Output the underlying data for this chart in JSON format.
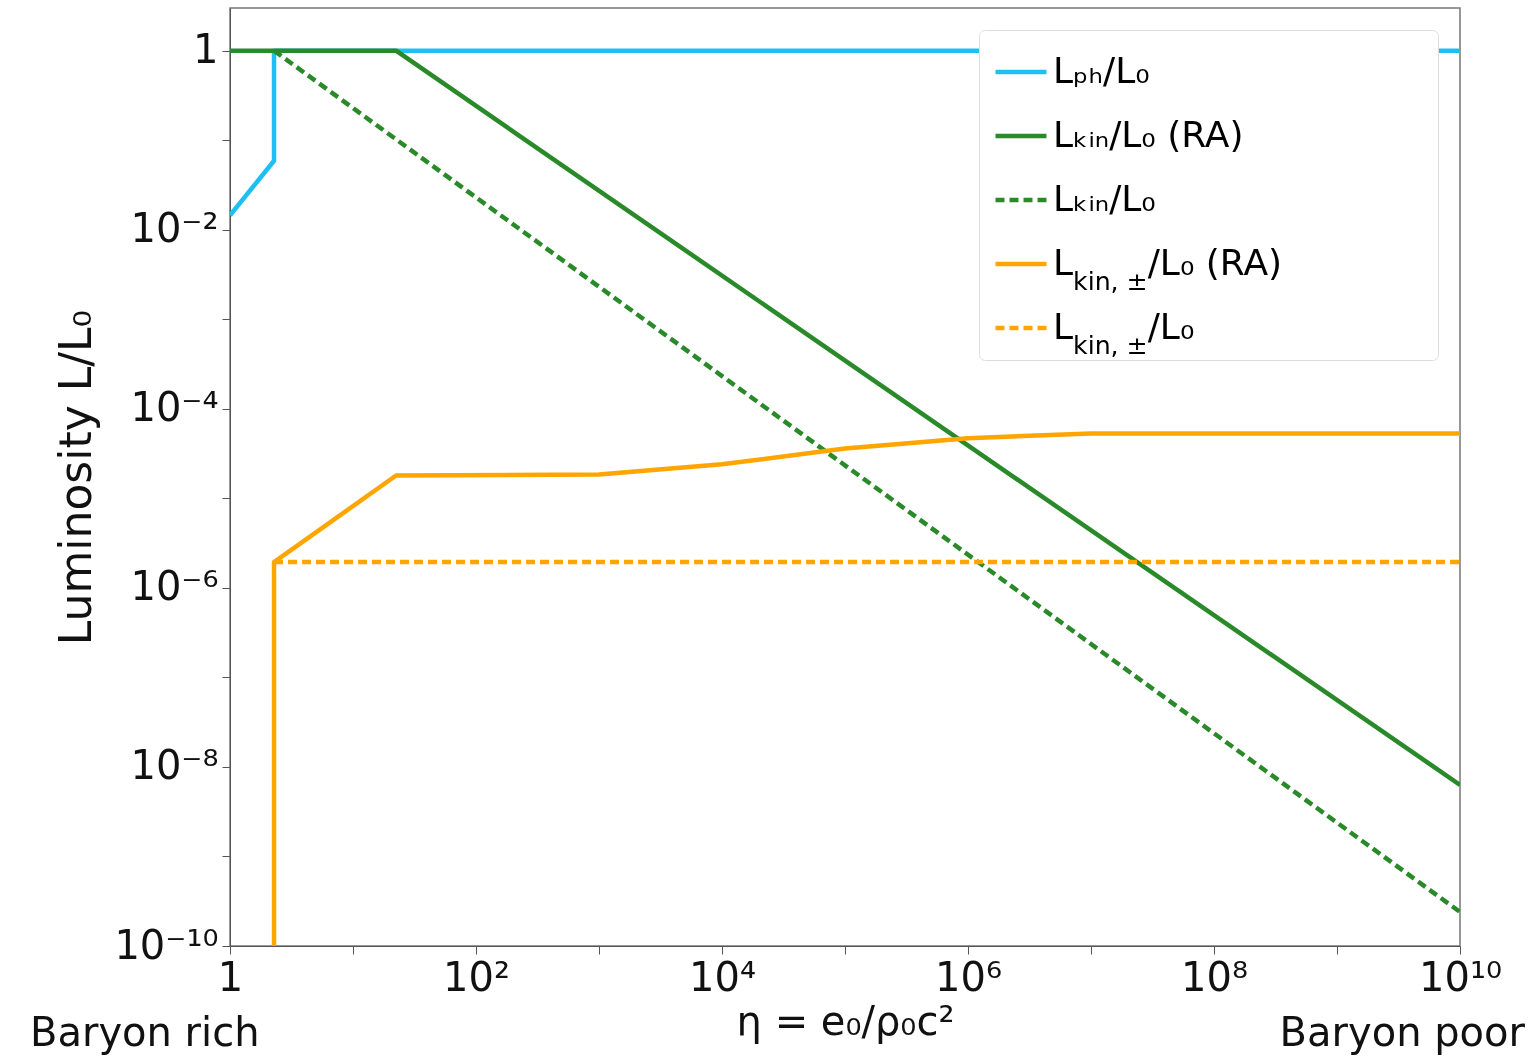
{
  "chart_data": {
    "type": "line",
    "xlabel": "η  = e₀/ρ₀c²",
    "ylabel": "Luminosity   L/L₀",
    "log": "xy",
    "xlim": [
      1,
      10000000000
    ],
    "ylim": [
      1e-10,
      3
    ],
    "xticks": [
      {
        "value": 1,
        "label": "1"
      },
      {
        "value": 10,
        "label": null
      },
      {
        "value": 100,
        "label": "10²"
      },
      {
        "value": 1000,
        "label": null
      },
      {
        "value": 10000,
        "label": "10⁴"
      },
      {
        "value": 100000,
        "label": null
      },
      {
        "value": 1000000,
        "label": "10⁶"
      },
      {
        "value": 10000000,
        "label": null
      },
      {
        "value": 100000000,
        "label": "10⁸"
      },
      {
        "value": 1000000000,
        "label": null
      },
      {
        "value": 10000000000,
        "label": "10¹⁰"
      }
    ],
    "yticks": [
      {
        "value": 1e-10,
        "label": "10⁻¹⁰"
      },
      {
        "value": 1e-09,
        "label": null
      },
      {
        "value": 1e-08,
        "label": "10⁻⁸"
      },
      {
        "value": 1e-07,
        "label": null
      },
      {
        "value": 1e-06,
        "label": "10⁻⁶"
      },
      {
        "value": 1e-05,
        "label": null
      },
      {
        "value": 0.0001,
        "label": "10⁻⁴"
      },
      {
        "value": 0.001,
        "label": null
      },
      {
        "value": 0.01,
        "label": "10⁻²"
      },
      {
        "value": 0.1,
        "label": null
      },
      {
        "value": 1,
        "label": "1"
      }
    ],
    "grid": false,
    "legend": "top right",
    "marker": "none",
    "series": [
      {
        "name": "Lₚₕ/L₀",
        "color": "#1ec0f2",
        "line_style": "solid",
        "x": [
          1,
          2.28,
          2.28,
          10000000000
        ],
        "values": [
          0.0145,
          0.059,
          1,
          1
        ]
      },
      {
        "name": "Lₖᵢₙ/L₀ (RA)",
        "color": "#2a8a2a",
        "line_style": "solid",
        "x": [
          1,
          22.4,
          10000000000
        ],
        "values": [
          1,
          1,
          6.3e-09
        ]
      },
      {
        "name": "Lₖᵢₙ/L₀",
        "color": "#2a8a2a",
        "line_style": "dashed",
        "x": [
          2.28,
          10000000000
        ],
        "values": [
          1,
          2.4e-10
        ]
      },
      {
        "name": "L$_{kin, ±}$/L₀ (RA)",
        "color": "#ffa500",
        "line_style": "solid",
        "x": [
          2.28,
          2.28,
          22.4,
          1000,
          10000,
          100000,
          1000000,
          10000000,
          10000000000
        ],
        "values": [
          1e-10,
          1.94e-06,
          1.8e-05,
          1.85e-05,
          2.4e-05,
          3.6e-05,
          4.7e-05,
          5.3e-05,
          5.3e-05
        ]
      },
      {
        "name": "L$_{kin, ±}$/L₀",
        "color": "#ffa500",
        "line_style": "dashed",
        "x": [
          2.28,
          10000000000
        ],
        "values": [
          1.94e-06,
          1.94e-06
        ]
      }
    ],
    "annotations": [
      "Baryon rich",
      "Baryon poor"
    ]
  }
}
